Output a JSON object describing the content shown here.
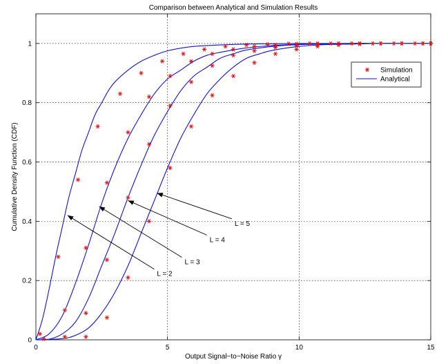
{
  "chart_data": {
    "type": "line",
    "title": "Comparison between Analytical and Simulation Results",
    "xlabel": "Output Signal−to−Noise Ratio γ",
    "ylabel": "Cumulative Density Function (CDF)",
    "xlim": [
      0,
      15
    ],
    "ylim": [
      0,
      1.1
    ],
    "xticks": [
      0,
      5,
      10,
      15
    ],
    "xtick_labels": [
      "0",
      "5",
      "10",
      "15"
    ],
    "yticks": [
      0,
      0.2,
      0.4,
      0.6,
      0.8,
      1
    ],
    "ytick_labels": [
      "0",
      "0.2",
      "0.4",
      "0.6",
      "0.8",
      "1"
    ],
    "grid": true,
    "legend": {
      "position": "top-right",
      "entries": [
        {
          "label": "Simulation",
          "marker": "asterisk",
          "color": "#e01010"
        },
        {
          "label": "Analytical",
          "marker": "line",
          "color": "#1010d8"
        }
      ]
    },
    "series": [
      {
        "L": 2,
        "analytical_x": [
          0,
          0.25,
          0.5,
          0.75,
          1,
          1.25,
          1.5,
          1.75,
          2,
          2.25,
          2.5,
          2.75,
          3,
          3.5,
          4,
          4.5,
          5,
          5.5,
          6,
          7,
          8,
          9,
          10,
          11,
          12,
          13,
          14,
          15
        ],
        "analytical_y": [
          0,
          0.07,
          0.17,
          0.28,
          0.38,
          0.48,
          0.56,
          0.64,
          0.7,
          0.76,
          0.8,
          0.84,
          0.87,
          0.91,
          0.94,
          0.96,
          0.975,
          0.984,
          0.99,
          0.995,
          0.998,
          0.999,
          1,
          1,
          1,
          1,
          1,
          1
        ],
        "sim_x": [
          0.15,
          0.85,
          1.6,
          2.35,
          3.2,
          4.0,
          4.8,
          5.6,
          6.4,
          7.2,
          8.0,
          8.8,
          9.6,
          10.4,
          11.2,
          12.0,
          12.8,
          13.6,
          14.4,
          15
        ],
        "sim_y": [
          0.02,
          0.28,
          0.54,
          0.72,
          0.83,
          0.9,
          0.94,
          0.965,
          0.98,
          0.99,
          0.995,
          0.997,
          0.999,
          1,
          1,
          1,
          1,
          1,
          1,
          1
        ]
      },
      {
        "L": 3,
        "analytical_x": [
          0,
          0.5,
          1,
          1.5,
          2,
          2.5,
          3,
          3.5,
          4,
          4.5,
          5,
          5.5,
          6,
          6.5,
          7,
          8,
          9,
          10,
          11,
          12,
          13,
          14,
          15
        ],
        "analytical_y": [
          0,
          0.02,
          0.08,
          0.19,
          0.32,
          0.46,
          0.58,
          0.68,
          0.76,
          0.83,
          0.88,
          0.91,
          0.94,
          0.96,
          0.97,
          0.985,
          0.993,
          0.997,
          0.999,
          1,
          1,
          1,
          1
        ],
        "sim_x": [
          0.3,
          1.1,
          1.9,
          2.7,
          3.5,
          4.3,
          5.1,
          5.9,
          6.7,
          7.5,
          8.3,
          9.1,
          9.9,
          10.7,
          11.5,
          12.3,
          13.1,
          13.9,
          14.7,
          15
        ],
        "sim_y": [
          0.003,
          0.1,
          0.31,
          0.53,
          0.7,
          0.82,
          0.89,
          0.94,
          0.965,
          0.98,
          0.99,
          0.995,
          0.998,
          1,
          1,
          1,
          1,
          1,
          1,
          1
        ]
      },
      {
        "L": 4,
        "analytical_x": [
          0,
          0.5,
          1,
          1.5,
          2,
          2.5,
          3,
          3.5,
          4,
          4.5,
          5,
          5.5,
          6,
          6.5,
          7,
          7.5,
          8,
          9,
          10,
          11,
          12,
          13,
          14,
          15
        ],
        "analytical_y": [
          0,
          0.002,
          0.02,
          0.06,
          0.14,
          0.25,
          0.36,
          0.48,
          0.59,
          0.69,
          0.77,
          0.84,
          0.89,
          0.92,
          0.95,
          0.965,
          0.978,
          0.99,
          0.996,
          0.998,
          1,
          1,
          1,
          1
        ],
        "sim_x": [
          1.1,
          1.9,
          2.7,
          3.5,
          4.3,
          5.1,
          5.9,
          6.7,
          7.5,
          8.3,
          9.1,
          9.9,
          10.7,
          11.5,
          12.3,
          13.1,
          13.9,
          14.7,
          15
        ],
        "sim_y": [
          0.01,
          0.09,
          0.27,
          0.48,
          0.66,
          0.79,
          0.87,
          0.925,
          0.96,
          0.975,
          0.987,
          0.993,
          0.997,
          1,
          1,
          1,
          1,
          1,
          1
        ]
      },
      {
        "L": 5,
        "analytical_x": [
          0,
          1,
          1.5,
          2,
          2.5,
          3,
          3.5,
          4,
          4.5,
          5,
          5.5,
          6,
          6.5,
          7,
          7.5,
          8,
          8.5,
          9,
          10,
          11,
          12,
          13,
          14,
          15
        ],
        "analytical_y": [
          0,
          0.004,
          0.015,
          0.04,
          0.09,
          0.16,
          0.25,
          0.36,
          0.47,
          0.58,
          0.68,
          0.76,
          0.83,
          0.88,
          0.92,
          0.95,
          0.965,
          0.977,
          0.99,
          0.996,
          0.998,
          1,
          1,
          1
        ],
        "sim_x": [
          1.9,
          2.7,
          3.5,
          4.3,
          5.1,
          5.9,
          6.7,
          7.5,
          8.3,
          9.1,
          9.9,
          10.7,
          11.5,
          12.3,
          13.1,
          13.9,
          14.7,
          15
        ],
        "sim_y": [
          0.01,
          0.075,
          0.21,
          0.4,
          0.58,
          0.72,
          0.825,
          0.89,
          0.935,
          0.965,
          0.98,
          0.99,
          0.995,
          0.998,
          1,
          1,
          1,
          1
        ]
      }
    ],
    "annotations": [
      {
        "text": "L = 2",
        "label_x": 4.6,
        "label_y": 0.215,
        "arrow_to_x": 1.2,
        "arrow_to_y": 0.42
      },
      {
        "text": "L = 3",
        "label_x": 5.65,
        "label_y": 0.255,
        "arrow_to_x": 2.4,
        "arrow_to_y": 0.45
      },
      {
        "text": "L = 4",
        "label_x": 6.6,
        "label_y": 0.33,
        "arrow_to_x": 3.5,
        "arrow_to_y": 0.47
      },
      {
        "text": "L = 5",
        "label_x": 7.55,
        "label_y": 0.385,
        "arrow_to_x": 4.6,
        "arrow_to_y": 0.495
      }
    ],
    "colors": {
      "simulation": "#e01010",
      "analytical": "#1010d8"
    }
  }
}
